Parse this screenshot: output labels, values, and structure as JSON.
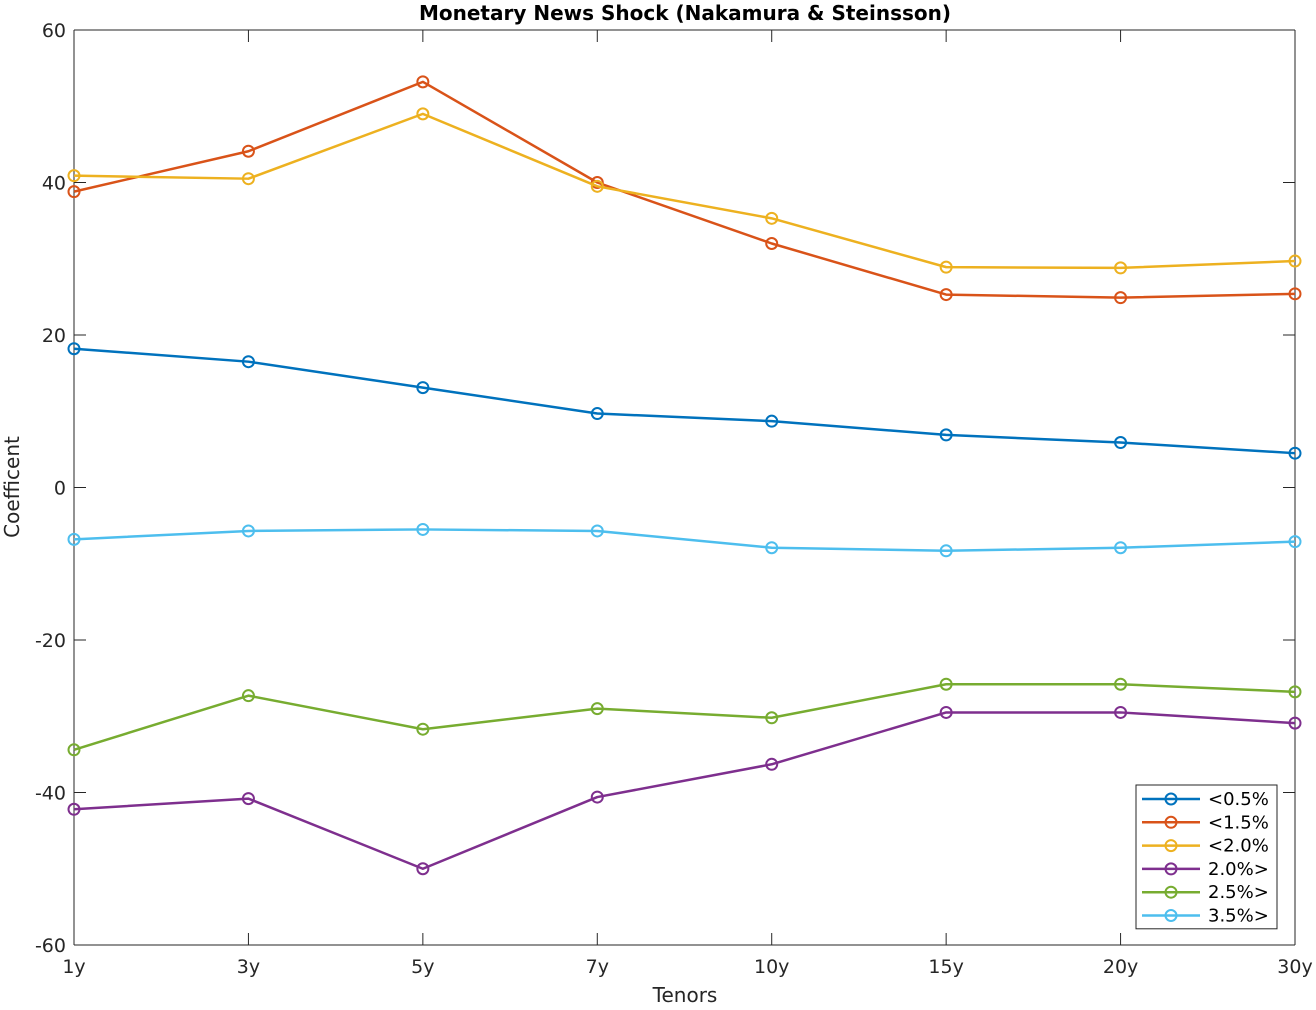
{
  "chart_data": {
    "type": "line",
    "title": "Monetary News Shock (Nakamura & Steinsson)",
    "xlabel": "Tenors",
    "ylabel": "Coefficent",
    "categories": [
      "1y",
      "3y",
      "5y",
      "7y",
      "10y",
      "15y",
      "20y",
      "30y"
    ],
    "ylim": [
      -60,
      60
    ],
    "yticks": [
      -60,
      -40,
      -20,
      0,
      20,
      40,
      60
    ],
    "grid": false,
    "legend_location": "bottom-right",
    "marker": "circle",
    "series": [
      {
        "name": "<0.5%",
        "color": "#0072BD",
        "values": [
          18.2,
          16.5,
          13.1,
          9.7,
          8.7,
          6.9,
          5.9,
          4.5
        ]
      },
      {
        "name": "<1.5%",
        "color": "#D95319",
        "values": [
          38.8,
          44.1,
          53.2,
          40.0,
          32.0,
          25.3,
          24.9,
          25.4
        ]
      },
      {
        "name": "<2.0%",
        "color": "#EDB120",
        "values": [
          40.9,
          40.5,
          49.0,
          39.5,
          35.3,
          28.9,
          28.8,
          29.7
        ]
      },
      {
        "name": "2.0%>",
        "color": "#7E2F8E",
        "values": [
          -42.2,
          -40.8,
          -50.0,
          -40.6,
          -36.3,
          -29.5,
          -29.5,
          -30.9
        ]
      },
      {
        "name": "2.5%>",
        "color": "#77AC30",
        "values": [
          -34.4,
          -27.3,
          -31.7,
          -29.0,
          -30.2,
          -25.8,
          -25.8,
          -26.8
        ]
      },
      {
        "name": "3.5%>",
        "color": "#4DBEEE",
        "values": [
          -6.8,
          -5.7,
          -5.5,
          -5.7,
          -7.9,
          -8.3,
          -7.9,
          -7.1
        ]
      }
    ]
  }
}
